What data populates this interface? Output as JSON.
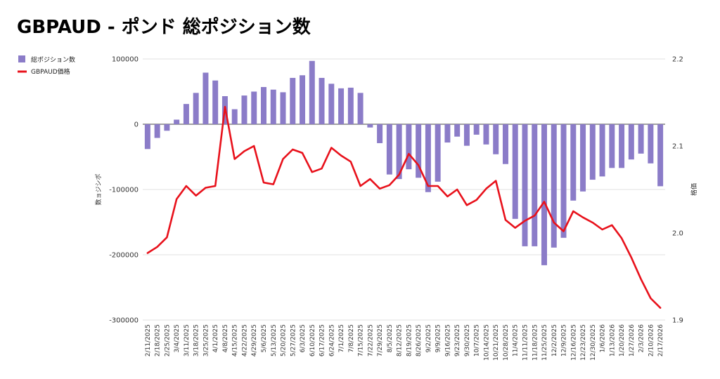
{
  "page_title": "GBPAUD - ポンド 総ポジション数",
  "chart_data": {
    "type": "bar+line",
    "title": "GBPAUD - ポンド 総ポジション数",
    "ylabel_left": "数ョジシポ",
    "ylabel_right": "格価",
    "ylim_left": [
      -300000,
      100000
    ],
    "yticks_left": [
      100000,
      0,
      -100000,
      -200000,
      -300000
    ],
    "ytick_labels_left": [
      "100000",
      "0",
      "-100000",
      "-200000",
      "-300000"
    ],
    "ylim_right": [
      1.9,
      2.2
    ],
    "yticks_right": [
      2.2,
      2.1,
      2.0,
      1.9
    ],
    "ytick_labels_right": [
      "2.2",
      "2.1",
      "2.0",
      "1.9"
    ],
    "legend_position": "top-left",
    "grid": true,
    "colors": {
      "bar": "#8b7cc8",
      "line": "#e8111b",
      "grid": "#d9d9d9"
    },
    "categories": [
      "2/11/2025",
      "2/18/2025",
      "2/25/2025",
      "3/4/2025",
      "3/11/2025",
      "3/18/2025",
      "3/25/2025",
      "4/1/2025",
      "4/8/2025",
      "4/15/2025",
      "4/22/2025",
      "4/29/2025",
      "5/6/2025",
      "5/13/2025",
      "5/20/2025",
      "5/27/2025",
      "6/3/2025",
      "6/10/2025",
      "6/17/2025",
      "6/24/2025",
      "7/1/2025",
      "7/8/2025",
      "7/15/2025",
      "7/22/2025",
      "7/29/2025",
      "8/5/2025",
      "8/12/2025",
      "8/19/2025",
      "8/26/2025",
      "9/2/2025",
      "9/9/2025",
      "9/16/2025",
      "9/23/2025",
      "9/30/2025",
      "10/7/2025",
      "10/14/2025",
      "10/21/2025",
      "10/28/2025",
      "11/4/2025",
      "11/11/2025",
      "11/18/2025",
      "11/25/2025",
      "12/2/2025",
      "12/9/2025",
      "12/16/2025",
      "12/23/2025",
      "12/30/2025",
      "1/6/2026",
      "1/13/2026",
      "1/20/2026",
      "1/27/2026",
      "2/3/2026",
      "2/10/2026",
      "2/17/2026"
    ],
    "series": [
      {
        "name": "総ポジション数",
        "type": "bar",
        "values": [
          -38000,
          -21000,
          -10000,
          7000,
          31000,
          48000,
          79000,
          67000,
          43000,
          23000,
          44000,
          50000,
          57000,
          53000,
          49000,
          71000,
          75000,
          97000,
          71000,
          62000,
          55000,
          56000,
          48000,
          -5000,
          -29000,
          -77000,
          -84000,
          -69000,
          -82000,
          -104000,
          -88000,
          -28000,
          -19000,
          -33000,
          -16000,
          -31000,
          -46000,
          -61000,
          -145000,
          -187000,
          -187000,
          -216000,
          -189000,
          -174000,
          -117000,
          -103000,
          -85000,
          -80000,
          -67000,
          -67000,
          -54000,
          -45000,
          -60000,
          -95000
        ]
      },
      {
        "name": "GBPAUD価格",
        "type": "line",
        "values": [
          1.977,
          1.984,
          1.995,
          2.039,
          2.054,
          2.043,
          2.052,
          2.054,
          2.145,
          2.085,
          2.094,
          2.1,
          2.058,
          2.056,
          2.085,
          2.096,
          2.092,
          2.07,
          2.074,
          2.098,
          2.089,
          2.082,
          2.054,
          2.062,
          2.051,
          2.055,
          2.067,
          2.091,
          2.078,
          2.054,
          2.054,
          2.042,
          2.05,
          2.032,
          2.038,
          2.051,
          2.06,
          2.015,
          2.006,
          2.014,
          2.02,
          2.036,
          2.012,
          2.002,
          2.025,
          2.018,
          2.012,
          2.004,
          2.009,
          1.994,
          1.972,
          1.947,
          1.925,
          1.914
        ]
      }
    ]
  }
}
